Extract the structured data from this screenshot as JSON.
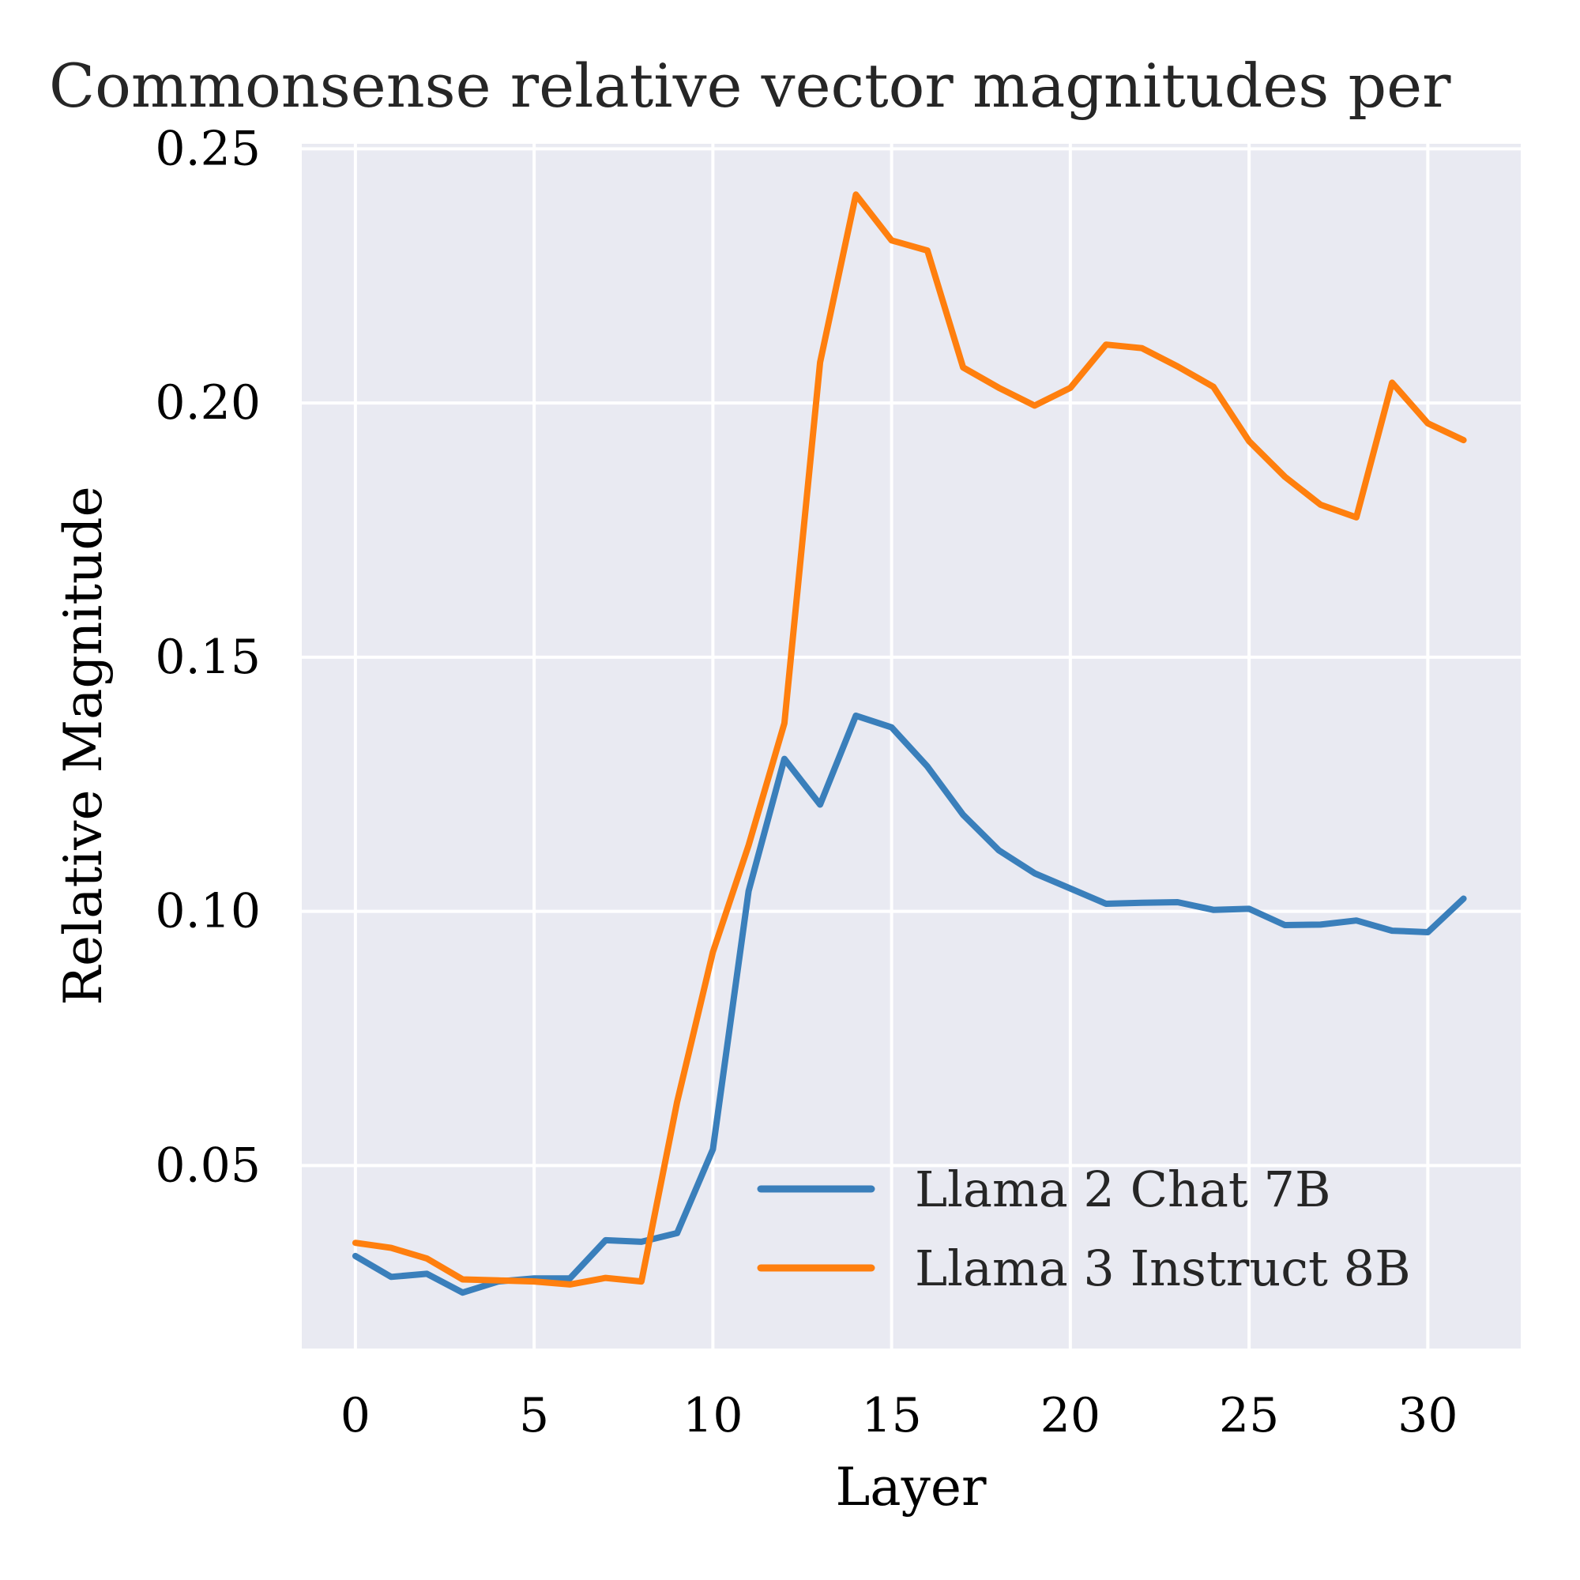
{
  "chart_data": {
    "type": "line",
    "title": "Commonsense relative vector magnitudes per",
    "xlabel": "Layer",
    "ylabel": "Relative Magnitude",
    "xlim": [
      -1.5,
      32.6
    ],
    "ylim": [
      0.014,
      0.251
    ],
    "xticks": [
      0,
      5,
      10,
      15,
      20,
      25,
      30
    ],
    "yticks": [
      0.05,
      0.1,
      0.15,
      0.2,
      0.25
    ],
    "ytick_labels": [
      "0.05",
      "0.10",
      "0.15",
      "0.20",
      "0.25"
    ],
    "grid": true,
    "legend_position": "bottom-right",
    "background": "#e9eaf2",
    "x": [
      0,
      1,
      2,
      3,
      4,
      5,
      6,
      7,
      8,
      9,
      10,
      11,
      12,
      13,
      14,
      15,
      16,
      17,
      18,
      19,
      20,
      21,
      22,
      23,
      24,
      25,
      26,
      27,
      28,
      29,
      30,
      31
    ],
    "series": [
      {
        "name": "Llama 2 Chat 7B",
        "color": "#3a7fbb",
        "values": [
          0.0322,
          0.0281,
          0.0287,
          0.025,
          0.0272,
          0.0278,
          0.0278,
          0.0353,
          0.035,
          0.0367,
          0.0532,
          0.104,
          0.13,
          0.121,
          0.1385,
          0.1362,
          0.1285,
          0.119,
          0.112,
          0.1075,
          0.1045,
          0.1015,
          0.1017,
          0.1018,
          0.1003,
          0.1005,
          0.0973,
          0.0974,
          0.0982,
          0.0962,
          0.0959,
          0.1025
        ]
      },
      {
        "name": "Llama 3 Instruct 8B",
        "color": "#ff7f0e",
        "values": [
          0.0348,
          0.0338,
          0.0317,
          0.0276,
          0.0274,
          0.0272,
          0.0266,
          0.0279,
          0.0272,
          0.0625,
          0.092,
          0.113,
          0.137,
          0.208,
          0.241,
          0.232,
          0.23,
          0.207,
          0.203,
          0.1995,
          0.203,
          0.2115,
          0.2108,
          0.2072,
          0.2032,
          0.1925,
          0.1855,
          0.18,
          0.1775,
          0.204,
          0.196,
          0.1927
        ]
      }
    ]
  }
}
